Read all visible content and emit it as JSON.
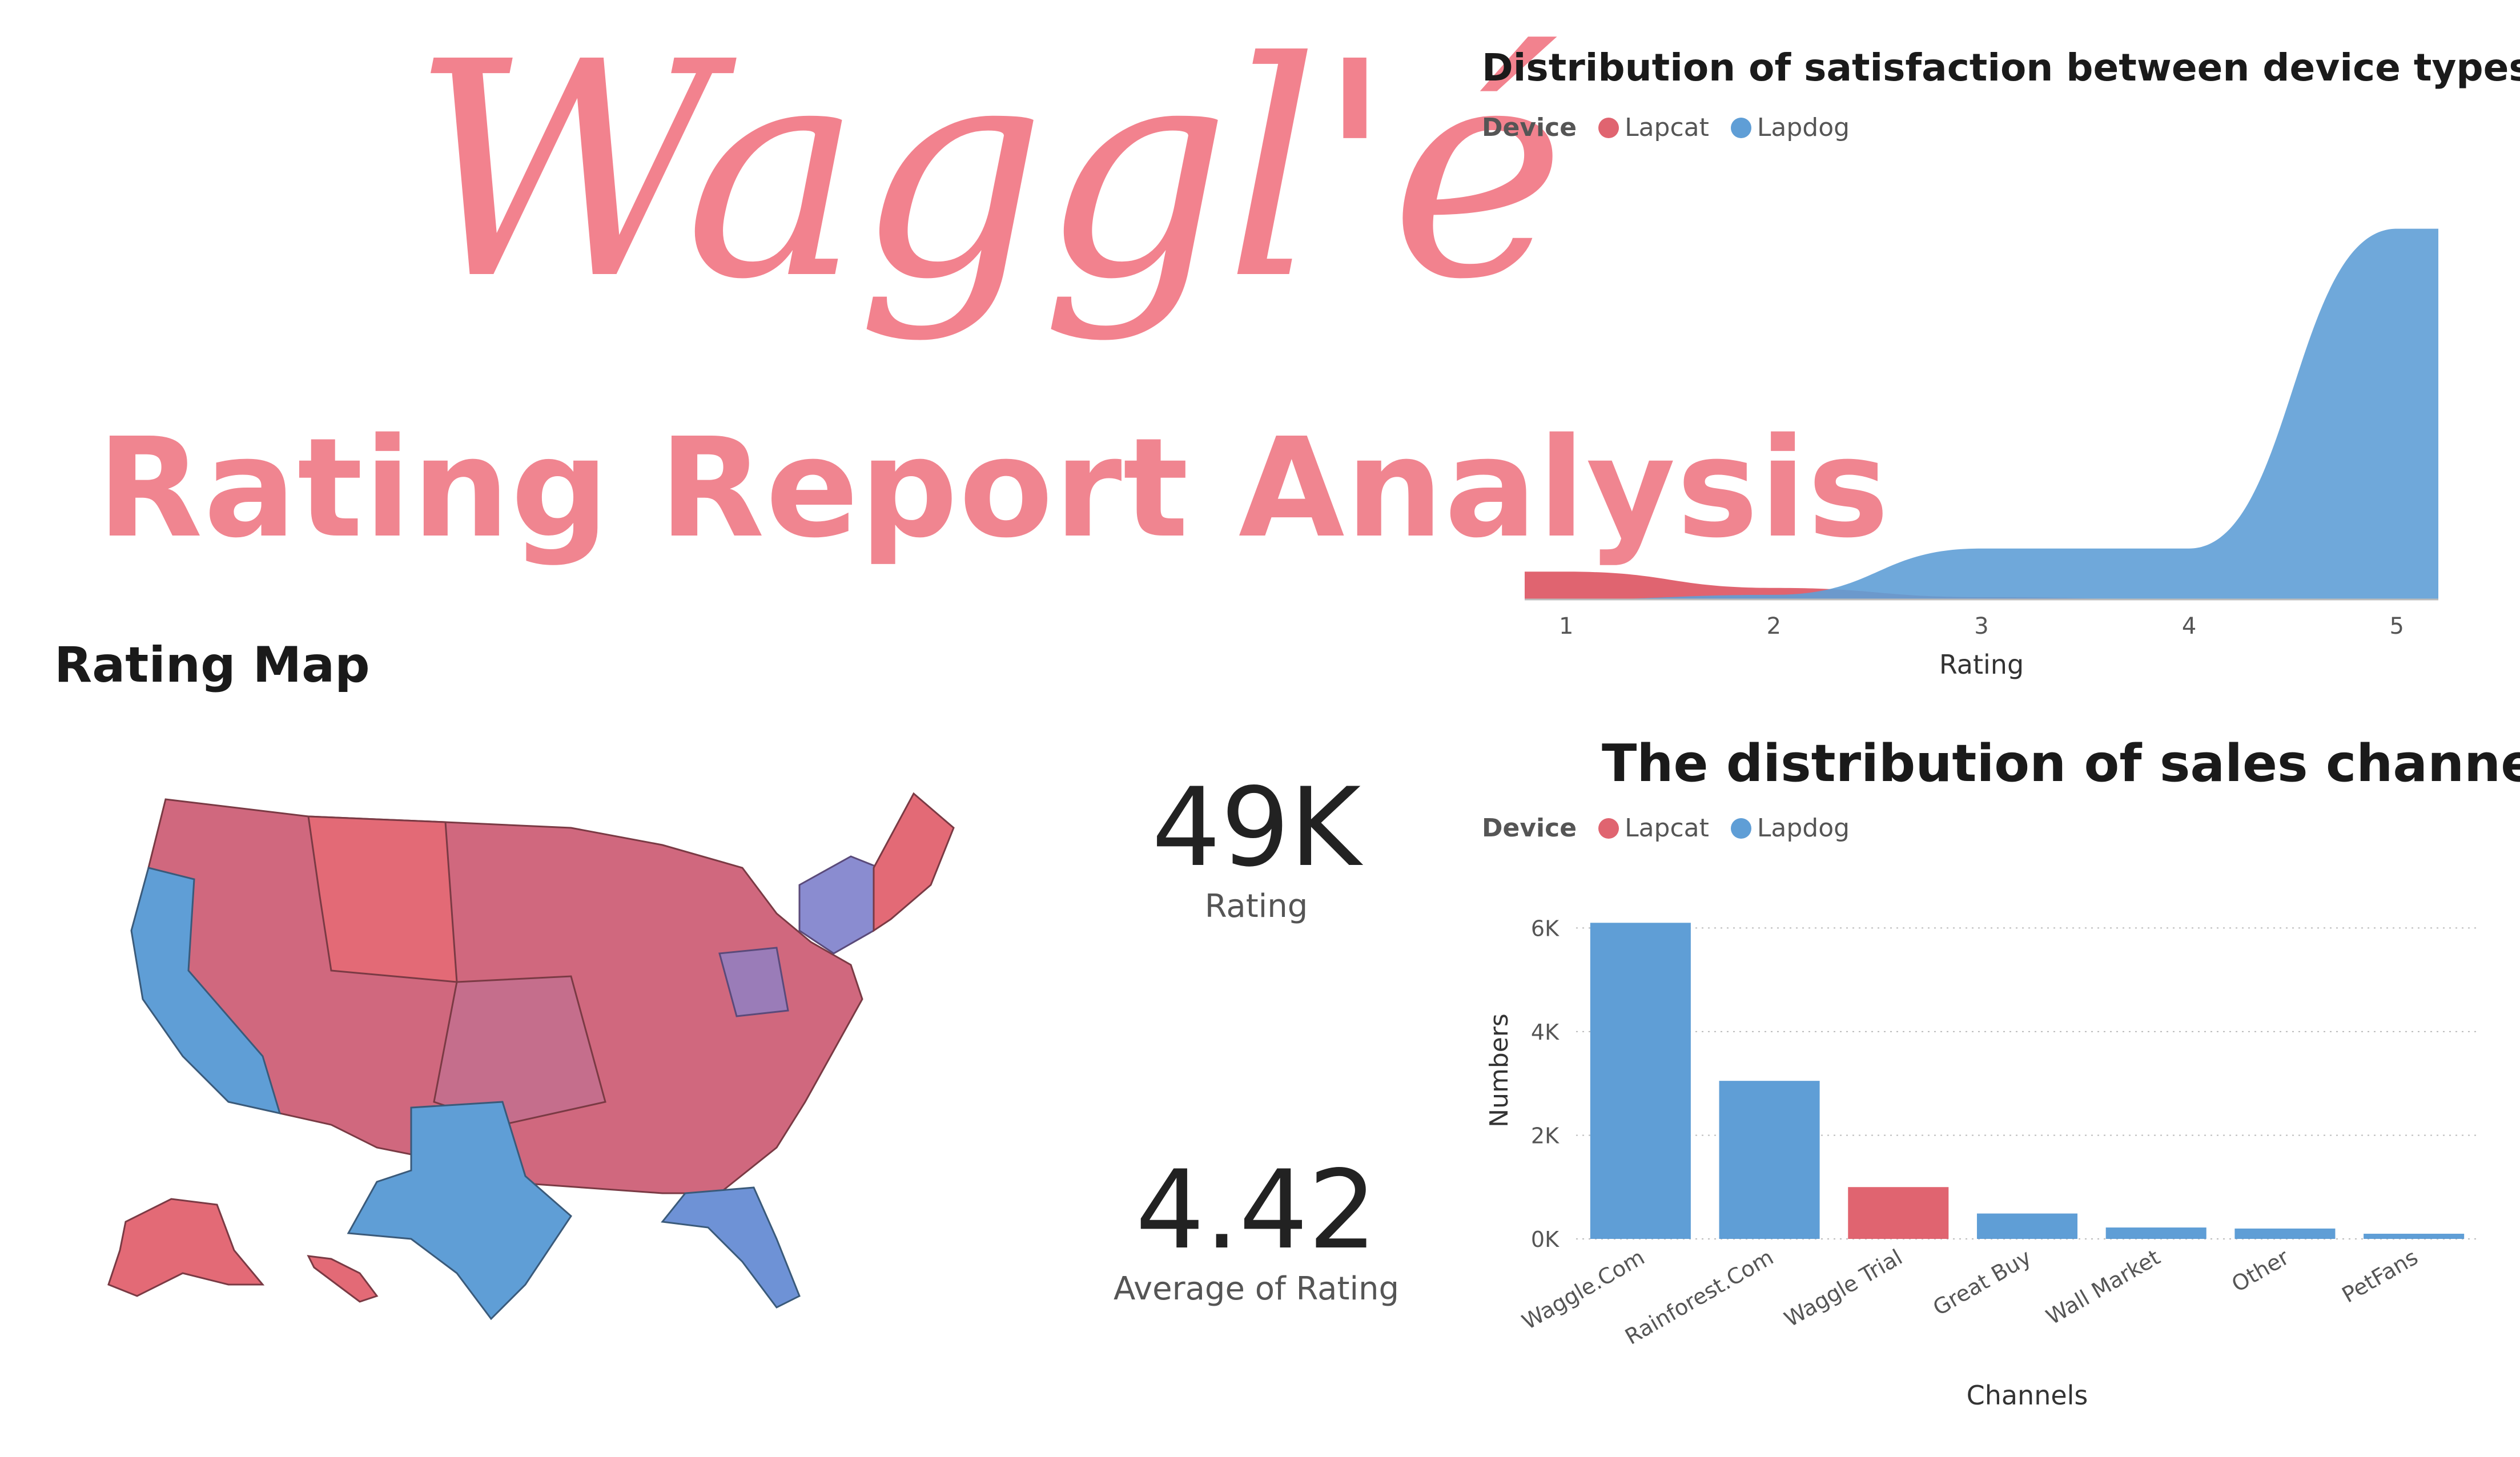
{
  "logo": {
    "text": "Waggl'é"
  },
  "report_title": "Rating Report Analysis",
  "map": {
    "title": "Rating Map"
  },
  "kpis": [
    {
      "value": "49K",
      "label": "Rating"
    },
    {
      "value": "4.42",
      "label": "Average of Rating"
    }
  ],
  "colors": {
    "lapcat": "#e06470",
    "lapdog": "#5f9ed6",
    "brand_pink": "#f2828e"
  },
  "chart_data": [
    {
      "type": "area",
      "title": "Distribution of satisfaction between device types",
      "legend_title": "Device",
      "legend_position": "top-left",
      "xlabel": "Rating",
      "ylabel": "",
      "x": [
        1,
        2,
        3,
        4,
        5
      ],
      "x_tick_labels": [
        "1",
        "2",
        "3",
        "4",
        "5"
      ],
      "series": [
        {
          "name": "Lapcat",
          "color": "#e06470",
          "values": [
            1.2,
            0.5,
            0.1,
            0.0,
            0.0
          ]
        },
        {
          "name": "Lapdog",
          "color": "#5f9ed6",
          "values": [
            0.0,
            0.2,
            2.2,
            2.2,
            16.0
          ]
        }
      ],
      "ylim": [
        0,
        17
      ],
      "grid": false
    },
    {
      "type": "bar",
      "title": "The distribution of sales channels",
      "legend_title": "Device",
      "legend_position": "top-left",
      "xlabel": "Channels",
      "ylabel": "Numbers",
      "categories": [
        "Waggle.Com",
        "Rainforest.Com",
        "Waggle Trial",
        "Great Buy",
        "Wall Market",
        "Other",
        "PetFans"
      ],
      "series": [
        {
          "name": "Lapcat",
          "color": "#e06470",
          "values": [
            0,
            0,
            1000,
            0,
            0,
            0,
            0
          ]
        },
        {
          "name": "Lapdog",
          "color": "#5f9ed6",
          "values": [
            6100,
            3050,
            0,
            490,
            220,
            200,
            100
          ]
        }
      ],
      "y_ticks": [
        0,
        2000,
        4000,
        6000
      ],
      "y_tick_labels": [
        "0K",
        "2K",
        "4K",
        "6K"
      ],
      "ylim": [
        0,
        6500
      ],
      "grid": true
    }
  ]
}
